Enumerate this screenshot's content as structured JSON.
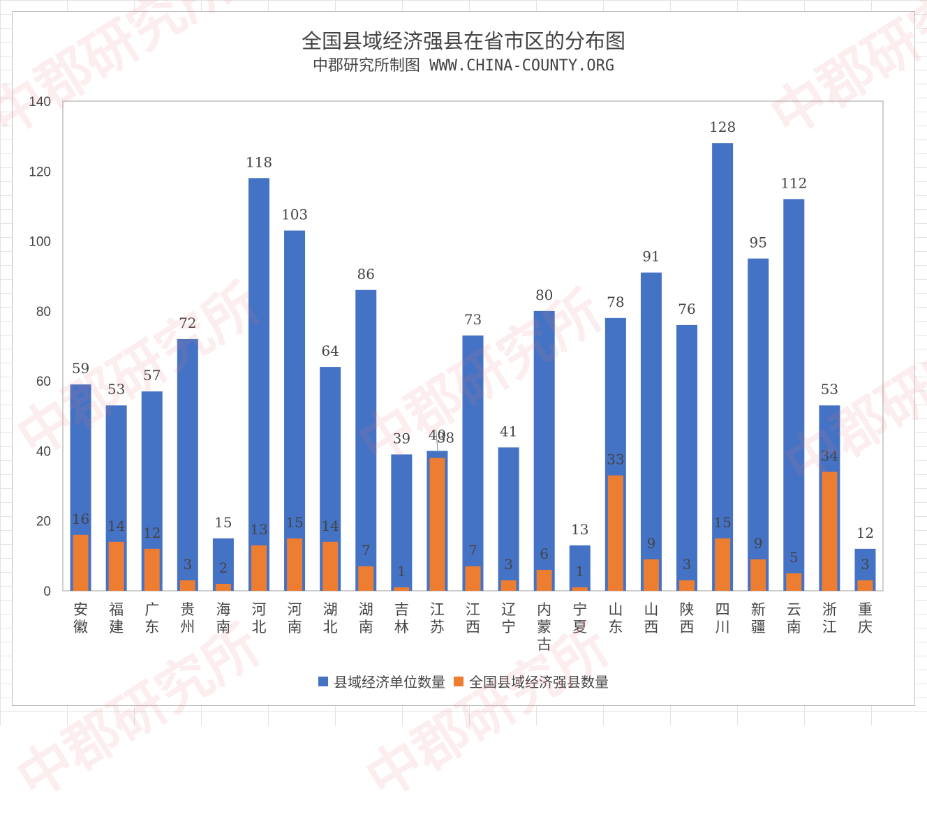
{
  "page": {
    "title": "全国县域经济强县在省市区的分布图",
    "subtitle": "中郡研究所制图 WWW.CHINA-COUNTY.ORG",
    "watermark_text": "中郡研究所"
  },
  "colors": {
    "series1": "#4472C4",
    "series2": "#ED7D31",
    "label": "#444444",
    "axis": "#bfbfbf"
  },
  "chart_data": {
    "type": "bar",
    "title": "全国县域经济强县在省市区的分布图",
    "subtitle": "中郡研究所制图 WWW.CHINA-COUNTY.ORG",
    "xlabel": "",
    "ylabel": "",
    "ylim": [
      0,
      140
    ],
    "yticks": [
      0,
      20,
      40,
      60,
      80,
      100,
      120,
      140
    ],
    "grid": false,
    "legend_position": "bottom",
    "categories": [
      "安徽",
      "福建",
      "广东",
      "贵州",
      "海南",
      "河北",
      "河南",
      "湖北",
      "湖南",
      "吉林",
      "江苏",
      "江西",
      "辽宁",
      "内蒙古",
      "宁夏",
      "山东",
      "山西",
      "陕西",
      "四川",
      "新疆",
      "云南",
      "浙江",
      "重庆"
    ],
    "series": [
      {
        "name": "县域经济单位数量",
        "values": [
          59,
          53,
          57,
          72,
          15,
          118,
          103,
          64,
          86,
          39,
          40,
          73,
          41,
          80,
          13,
          78,
          91,
          76,
          128,
          95,
          112,
          53,
          12
        ]
      },
      {
        "name": "全国县域经济强县数量",
        "values": [
          16,
          14,
          12,
          3,
          2,
          13,
          15,
          14,
          7,
          1,
          38,
          7,
          3,
          6,
          1,
          33,
          9,
          3,
          15,
          9,
          5,
          34,
          3
        ]
      }
    ]
  }
}
